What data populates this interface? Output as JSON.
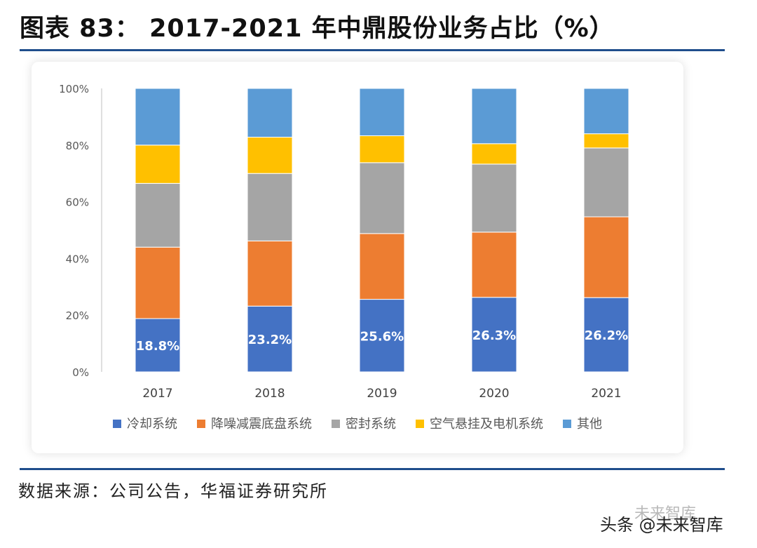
{
  "title": "图表 83：  2017-2021 年中鼎股份业务占比（%）",
  "source": "数据来源：公司公告，华福证券研究所",
  "watermark": {
    "text": "头条 @未来智库",
    "background_text": "未来智库"
  },
  "colors": {
    "accent_rule": "#1f4e8c",
    "series": [
      "#4472c4",
      "#ed7d31",
      "#a5a5a5",
      "#ffc000",
      "#5b9bd5"
    ]
  },
  "chart_data": {
    "type": "bar",
    "stacked": true,
    "title": "",
    "xlabel": "",
    "ylabel": "",
    "categories": [
      "2017",
      "2018",
      "2019",
      "2020",
      "2021"
    ],
    "y_ticks": [
      "0%",
      "20%",
      "40%",
      "60%",
      "80%",
      "100%"
    ],
    "ylim": [
      0,
      100
    ],
    "series": [
      {
        "name": "冷却系统",
        "values": [
          18.8,
          23.2,
          25.6,
          26.3,
          26.2
        ],
        "labels": [
          "18.8%",
          "23.2%",
          "25.6%",
          "26.3%",
          "26.2%"
        ]
      },
      {
        "name": "降噪减震底盘系统",
        "values": [
          25.2,
          23.0,
          23.2,
          23.0,
          28.5
        ]
      },
      {
        "name": "密封系统",
        "values": [
          22.5,
          23.8,
          25.0,
          24.0,
          24.3
        ]
      },
      {
        "name": "空气悬挂及电机系统",
        "values": [
          13.5,
          12.8,
          9.5,
          7.2,
          5.0
        ]
      },
      {
        "name": "其他",
        "values": [
          20.0,
          17.2,
          16.7,
          19.5,
          16.0
        ]
      }
    ],
    "legend_position": "bottom"
  }
}
